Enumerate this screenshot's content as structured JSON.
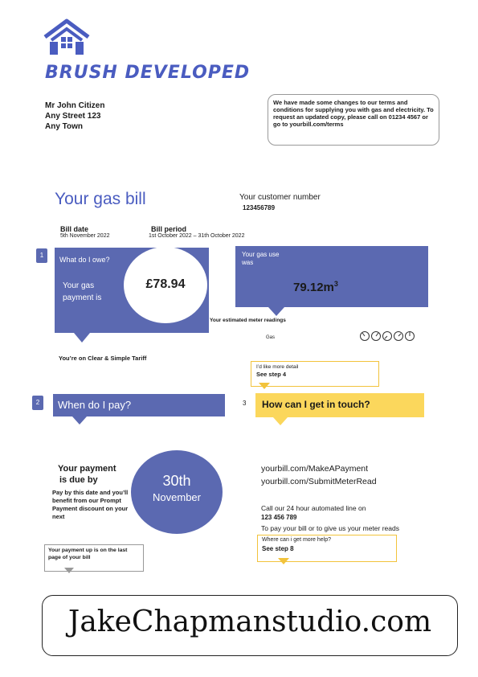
{
  "brand": {
    "name": "BRUSH DEVELOPED",
    "logo_icon": "house-logo-icon"
  },
  "address": {
    "line1": "Mr John Citizen",
    "line2": "Any Street 123",
    "line3": "Any Town"
  },
  "notice": {
    "text": "We have made some changes to our terms and conditions for supplying you with gas and electricity. To request an updated copy, please call on 01234 4567 or go to yourbill.com/terms"
  },
  "header": {
    "title": "Your gas bill",
    "customer_label": "Your customer number",
    "customer_number": "123456789"
  },
  "bill": {
    "date_label": "Bill date",
    "date_value": "5th November 2022",
    "period_label": "Bill period",
    "period_value": "1st October 2022 – 31th October 2022"
  },
  "section1": {
    "number": "1",
    "question": "What do I owe?",
    "payment_label": "Your gas payment is",
    "amount": "£78.94",
    "tariff": "You’re on Clear & Simple Tariff"
  },
  "usage": {
    "label": "Your gas use was",
    "value": "79.12m",
    "unit_sup": "3",
    "estimated": "Your estimated meter readings",
    "meter_label": "Gas"
  },
  "detail_callout": {
    "text": "I’d like more detail",
    "step": "See step 4"
  },
  "section2": {
    "number": "2",
    "title": "When do I pay?"
  },
  "section3": {
    "number": "3",
    "title": "How can I get in touch?"
  },
  "due": {
    "title_line1": "Your payment",
    "title_line2": "is due by",
    "note": "Pay by this date and you’ll benefit from our Prompt Payment discount on your next",
    "day": "30th",
    "month": "November"
  },
  "payment_note": {
    "text": "Your payment up is on the last page of your bill"
  },
  "contact": {
    "link1": "yourbill.com/MakeAPayment",
    "link2": "yourbill.com/SubmitMeterRead",
    "call_text": "Call our 24 hour automated line on",
    "phone": "123 456 789",
    "reads_text": "To pay your bill or to give us your meter reads"
  },
  "help_callout": {
    "text": "Where can i get more help?",
    "step": "See step 8"
  },
  "footer": {
    "watermark": "JakeChapmanstudio.com"
  }
}
